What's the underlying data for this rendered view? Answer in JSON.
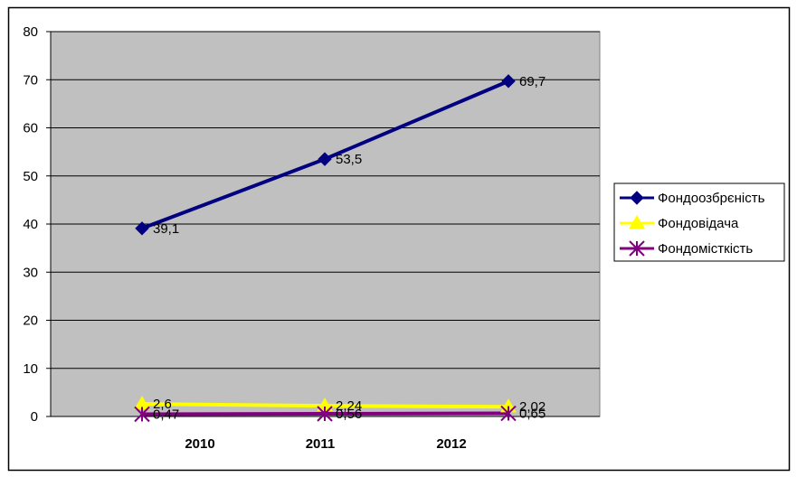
{
  "chart_data": {
    "type": "line",
    "categories": [
      "2010",
      "2011",
      "2012"
    ],
    "ylim": [
      0,
      80
    ],
    "yticks": [
      "0",
      "10",
      "20",
      "30",
      "40",
      "50",
      "60",
      "70",
      "80"
    ],
    "grid": true,
    "legend_position": "right",
    "plot_background": "#C0C0C0",
    "series": [
      {
        "name": "Фондоозбрєність",
        "values": [
          39.1,
          53.5,
          69.7
        ],
        "labels": [
          "39,1",
          "53,5",
          "69,7"
        ],
        "color": "#000080",
        "marker": "diamond"
      },
      {
        "name": "Фондовідача",
        "values": [
          2.6,
          2.24,
          2.02
        ],
        "labels": [
          "2,6",
          "2,24",
          "2,02"
        ],
        "color": "#FFFF00",
        "marker": "triangle"
      },
      {
        "name": "Фондомісткість",
        "values": [
          0.47,
          0.56,
          0.65
        ],
        "labels": [
          "0,47",
          "0,56",
          "0,65"
        ],
        "color": "#800080",
        "marker": "star"
      }
    ]
  }
}
